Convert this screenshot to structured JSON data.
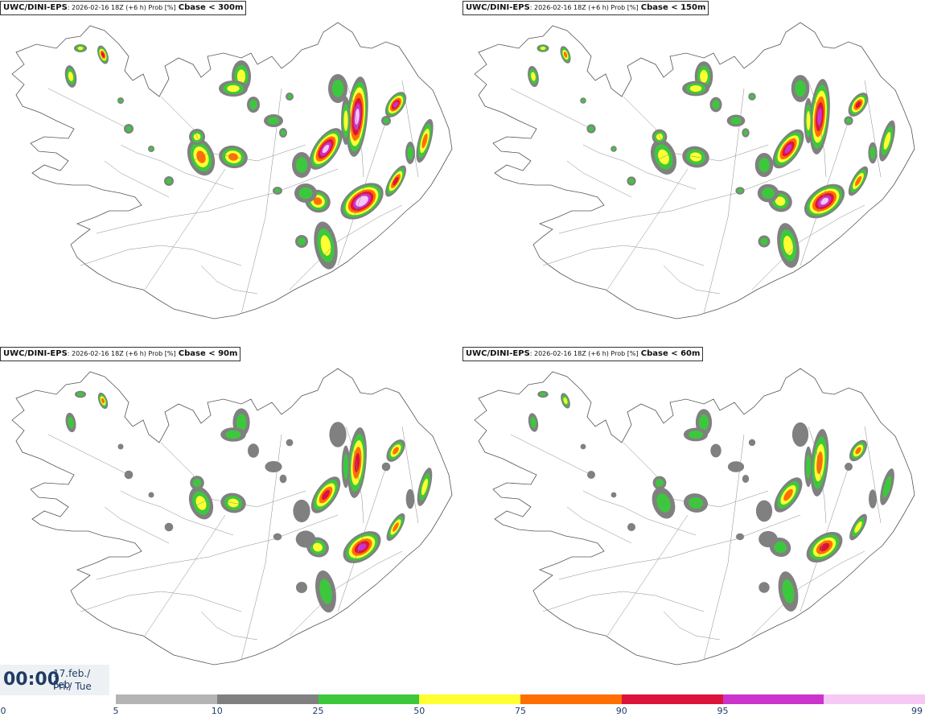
{
  "panels": [
    {
      "model": "UWC/DINI-EPS",
      "meta": ": 2026-02-16 18Z (+6 h) Prob [%]",
      "var": "Cbase < 300m",
      "scale": 1.0
    },
    {
      "model": "UWC/DINI-EPS",
      "meta": ": 2026-02-16 18Z (+6 h) Prob [%]",
      "var": "Cbase < 150m",
      "scale": 0.85
    },
    {
      "model": "UWC/DINI-EPS",
      "meta": ": 2026-02-16 18Z (+6 h) Prob [%]",
      "var": "Cbase < 90m",
      "scale": 0.7
    },
    {
      "model": "UWC/DINI-EPS",
      "meta": ": 2026-02-16 18Z (+6 h) Prob [%]",
      "var": "Cbase < 60m",
      "scale": 0.6
    }
  ],
  "valid_time": {
    "time": "00:00",
    "date": "17.feb./ Feb",
    "weekday": "Þri./ Tue"
  },
  "colorbar": {
    "ticks": [
      "0",
      "5",
      "10",
      "25",
      "50",
      "75",
      "90",
      "95",
      "99"
    ],
    "colors": [
      "#b4b4b4",
      "#808080",
      "#3cc83c",
      "#ffff32",
      "#ff6e00",
      "#dc143c",
      "#cc33cc",
      "#f5c8f5"
    ]
  },
  "colors": {
    "map_outline": "#555555",
    "title_text": "#1f3c66"
  }
}
